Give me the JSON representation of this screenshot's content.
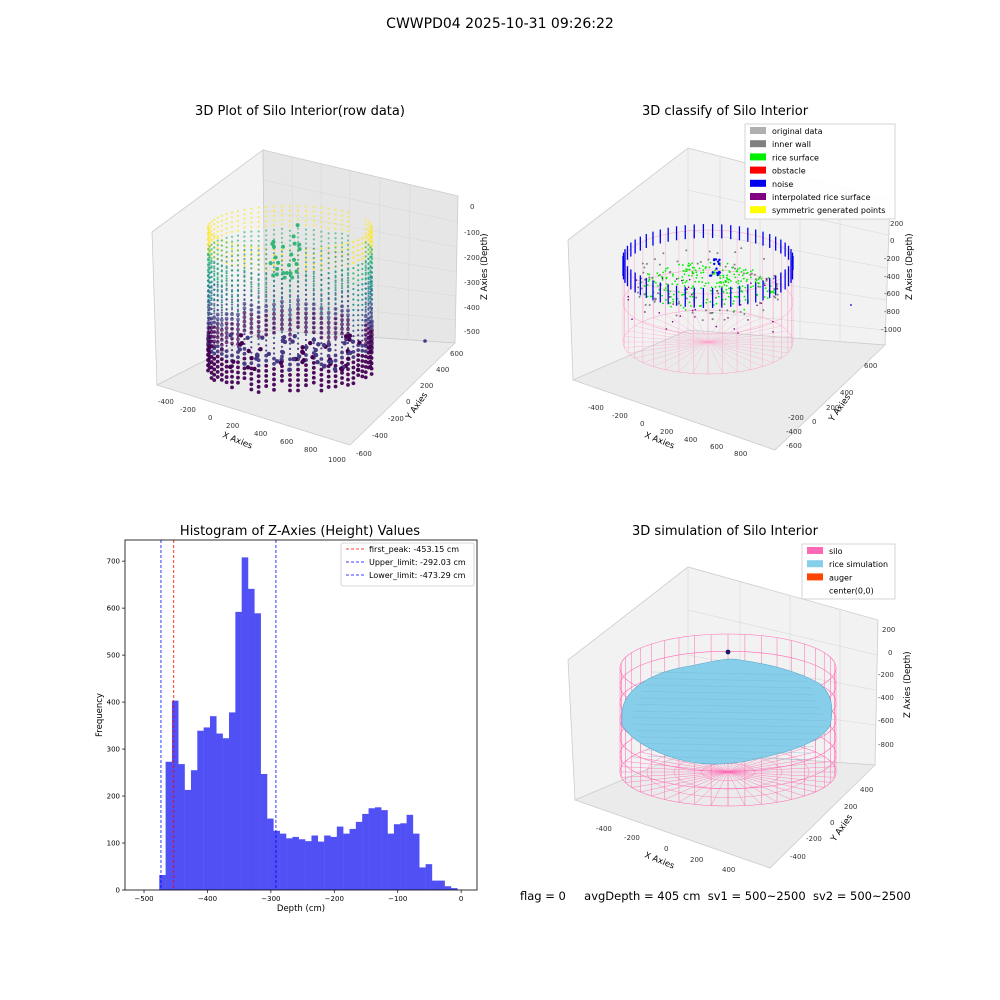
{
  "figure_title": "CWWPD04 2025-10-31 09:26:22",
  "footer": {
    "flag": "flag = 0",
    "avg_depth": "avgDepth = 405 cm",
    "sv1": "sv1 = 500~2500",
    "sv2": "sv2 = 500~2500"
  },
  "panels": {
    "raw": {
      "title": "3D Plot of Silo Interior(row data)",
      "xlabel": "X Axies",
      "ylabel": "Y Axies",
      "zlabel": "Z Axies (Depth)",
      "xticks": [
        "-400",
        "-200",
        "0",
        "200",
        "400",
        "600",
        "800",
        "1000"
      ],
      "yticks": [
        "600",
        "400",
        "200",
        "0",
        "-200",
        "-400",
        "-600"
      ],
      "zticks": [
        "0",
        "-100",
        "-200",
        "-300",
        "-400",
        "-500"
      ],
      "colormap": [
        "#fde725",
        "#35b779",
        "#21918c",
        "#31688e",
        "#443983",
        "#440154"
      ]
    },
    "classify": {
      "title": "3D classify of Silo Interior",
      "xlabel": "X Axies",
      "ylabel": "Y Axies",
      "zlabel": "Z Axies (Depth)",
      "xticks": [
        "-400",
        "-200",
        "0",
        "200",
        "400",
        "600",
        "800"
      ],
      "yticks": [
        "600",
        "400",
        "200",
        "0",
        "-200",
        "-400",
        "-600"
      ],
      "zticks": [
        "200",
        "0",
        "-200",
        "-400",
        "-600",
        "-800",
        "-1000"
      ],
      "legend": [
        {
          "label": "original data",
          "color": "#b0b0b0"
        },
        {
          "label": "inner wall",
          "color": "#808080"
        },
        {
          "label": "rice surface",
          "color": "#00ee00"
        },
        {
          "label": "obstacle",
          "color": "#ff0000"
        },
        {
          "label": "noise",
          "color": "#0000ee"
        },
        {
          "label": "interpolated rice surface",
          "color": "#800080"
        },
        {
          "label": "symmetric generated points",
          "color": "#ffff00"
        }
      ]
    },
    "simulation": {
      "title": "3D simulation of Silo Interior",
      "xlabel": "X Axies",
      "ylabel": "Y Axies",
      "zlabel": "Z Axies (Depth)",
      "xticks": [
        "-400",
        "-200",
        "0",
        "200",
        "400"
      ],
      "yticks": [
        "400",
        "200",
        "0",
        "-200",
        "-400"
      ],
      "zticks": [
        "200",
        "0",
        "-200",
        "-400",
        "-600",
        "-800"
      ],
      "legend": [
        {
          "label": "silo",
          "color": "#ff69b4"
        },
        {
          "label": "rice simulation",
          "color": "#87ceeb"
        },
        {
          "label": "auger",
          "color": "#ff4500"
        },
        {
          "label": "center(0,0)",
          "color": ""
        }
      ]
    }
  },
  "chart_data": {
    "type": "bar",
    "title": "Histogram of Z-Axies (Height) Values",
    "xlabel": "Depth (cm)",
    "ylabel": "Frequency",
    "xlim": [
      -530,
      25
    ],
    "ylim": [
      0,
      745
    ],
    "xticks": [
      -500,
      -400,
      -300,
      -200,
      -100,
      0
    ],
    "yticks": [
      0,
      100,
      200,
      300,
      400,
      500,
      600,
      700
    ],
    "bar_color": "#5050f5",
    "bin_width": 10,
    "bin_starts": [
      -476,
      -466,
      -456,
      -446,
      -436,
      -426,
      -416,
      -406,
      -396,
      -386,
      -376,
      -366,
      -356,
      -346,
      -336,
      -326,
      -316,
      -306,
      -296,
      -286,
      -276,
      -266,
      -256,
      -246,
      -236,
      -226,
      -216,
      -206,
      -196,
      -186,
      -176,
      -166,
      -156,
      -146,
      -136,
      -126,
      -116,
      -106,
      -96,
      -86,
      -76,
      -66,
      -56,
      -46,
      -36,
      -26,
      -16,
      -6
    ],
    "values": [
      32,
      273,
      403,
      268,
      213,
      255,
      339,
      346,
      370,
      333,
      323,
      378,
      592,
      708,
      641,
      589,
      247,
      152,
      126,
      120,
      110,
      113,
      108,
      104,
      116,
      103,
      116,
      113,
      135,
      120,
      130,
      145,
      162,
      174,
      176,
      170,
      120,
      140,
      142,
      160,
      120,
      48,
      55,
      20,
      20,
      8,
      4,
      0
    ],
    "reference_lines": [
      {
        "label": "first_peak: -453.15 cm",
        "value": -453.15,
        "color": "#ff0000"
      },
      {
        "label": "Upper_limit: -292.03 cm",
        "value": -292.03,
        "color": "#0000ff"
      },
      {
        "label": "Lower_limit: -473.29 cm",
        "value": -473.29,
        "color": "#0000ff"
      }
    ]
  }
}
